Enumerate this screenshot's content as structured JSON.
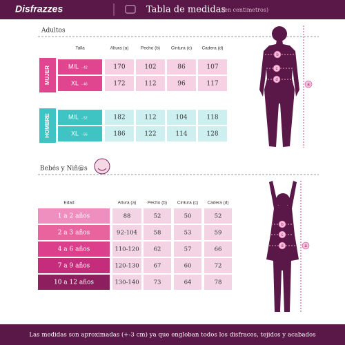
{
  "header": {
    "logo": "Disfrazzes",
    "title": "Tabla de medidas",
    "subtitle": "(en centimetros)"
  },
  "adults": {
    "title": "Adultos",
    "columns": [
      "Talla",
      "Altura (a)",
      "Pecho (b)",
      "Cintura (c)",
      "Cadera (d)"
    ],
    "groups": [
      {
        "label": "MUJER",
        "rows": [
          {
            "size": "M/L",
            "number": "- 42",
            "values": [
              170,
              102,
              86,
              107
            ]
          },
          {
            "size": "XL",
            "number": "- 46",
            "values": [
              172,
              112,
              96,
              117
            ]
          }
        ]
      },
      {
        "label": "HOMBRE",
        "rows": [
          {
            "size": "M/L",
            "number": "- 52",
            "values": [
              182,
              112,
              104,
              118
            ]
          },
          {
            "size": "XL",
            "number": "- 56",
            "values": [
              186,
              122,
              114,
              128
            ]
          }
        ]
      }
    ]
  },
  "figure_labels": [
    "a",
    "b",
    "c",
    "d"
  ],
  "kids": {
    "title": "Bebés y Niñ@s",
    "columns": [
      "Edad",
      "Altura (a)",
      "Pecho (b)",
      "Cintura (c)",
      "Cadera (d)"
    ],
    "rows": [
      {
        "age": "1 a 2 años",
        "values": [
          88,
          52,
          50,
          52
        ]
      },
      {
        "age": "2 a 3 años",
        "values": [
          "92-104",
          58,
          53,
          59
        ]
      },
      {
        "age": "4 a 6 años",
        "values": [
          "110-120",
          62,
          57,
          66
        ]
      },
      {
        "age": "7 a 9 años",
        "values": [
          "120-130",
          67,
          60,
          72
        ]
      },
      {
        "age": "10 a 12 años",
        "values": [
          "130-140",
          73,
          64,
          78
        ]
      }
    ]
  },
  "footer": "Las medidas son aproximadas (+-3 cm) ya que engloban todos los disfraces, tejidos y acabados"
}
